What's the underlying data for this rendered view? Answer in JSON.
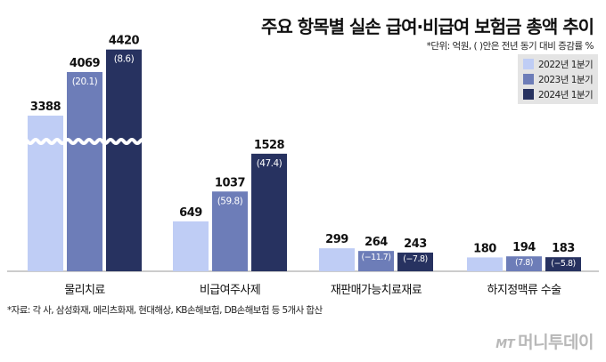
{
  "title": "주요 항목별 실손 급여·비급여 보험금 총액 추이",
  "unit_note": "*단위: 억원, ( )안은 전년 동기 대비 증감률 %",
  "source_note": "*자료: 각 사, 삼성화재, 메리츠화재, 현대해상, KB손해보험, DB손해보험 등 5개사 합산",
  "watermark": {
    "icon_text": "MT",
    "text": "머니투데이"
  },
  "colors": {
    "2022": "#bfcdf5",
    "2023": "#6d7db8",
    "2024": "#273260"
  },
  "chart_data": {
    "type": "bar",
    "title": "주요 항목별 실손 급여·비급여 보험금 총액 추이",
    "xlabel": "",
    "ylabel": "",
    "axis_break": true,
    "legend": "top-right",
    "categories": [
      "물리치료",
      "비급여주사제",
      "재판매가능치료재료",
      "하지정맥류 수술"
    ],
    "series": [
      {
        "name": "2022년 1분기",
        "values": [
          3388,
          649,
          299,
          180
        ],
        "changes": [
          "",
          "",
          "",
          ""
        ]
      },
      {
        "name": "2023년 1분기",
        "values": [
          4069,
          1037,
          264,
          194
        ],
        "changes": [
          "(20.1)",
          "(59.8)",
          "(−11.7)",
          "(7.8)"
        ]
      },
      {
        "name": "2024년 1분기",
        "values": [
          4420,
          1528,
          243,
          183
        ],
        "changes": [
          "(8.6)",
          "(47.4)",
          "(−7.8)",
          "(−5.8)"
        ]
      }
    ]
  }
}
